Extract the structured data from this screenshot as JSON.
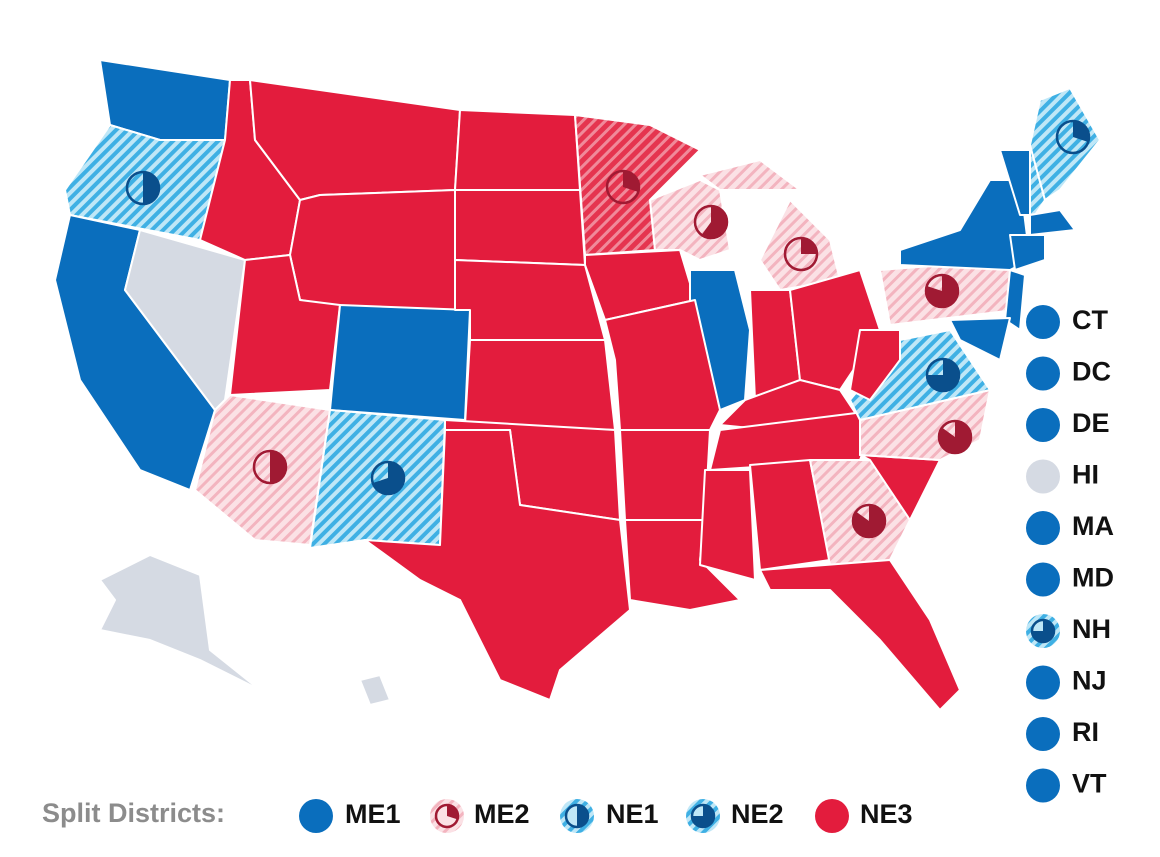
{
  "legend_states": [
    {
      "label": "CT",
      "style": "blue"
    },
    {
      "label": "DC",
      "style": "blue"
    },
    {
      "label": "DE",
      "style": "blue"
    },
    {
      "label": "HI",
      "style": "gray"
    },
    {
      "label": "MA",
      "style": "blue"
    },
    {
      "label": "MD",
      "style": "blue"
    },
    {
      "label": "NH",
      "style": "lean-blue"
    },
    {
      "label": "NJ",
      "style": "blue"
    },
    {
      "label": "RI",
      "style": "blue"
    },
    {
      "label": "VT",
      "style": "blue"
    }
  ],
  "split_districts": {
    "title": "Split Districts:",
    "items": [
      {
        "label": "ME1",
        "style": "blue"
      },
      {
        "label": "ME2",
        "style": "lean-red"
      },
      {
        "label": "NE1",
        "style": "tilt-blue"
      },
      {
        "label": "NE2",
        "style": "lean-blue"
      },
      {
        "label": "NE3",
        "style": "red"
      }
    ]
  }
}
